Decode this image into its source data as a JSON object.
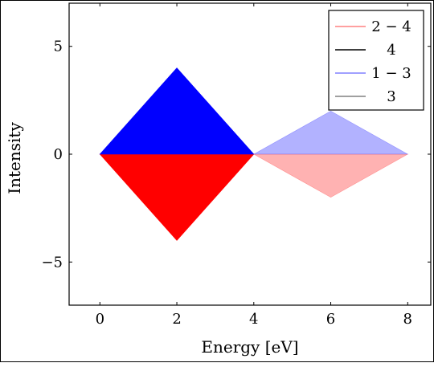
{
  "chart_data": {
    "type": "area",
    "title": "",
    "xlabel": "Energy [eV]",
    "ylabel": "Intensity",
    "xlim": [
      -0.8,
      8.6
    ],
    "ylim": [
      -7,
      7
    ],
    "xticks": [
      0,
      2,
      4,
      6,
      8
    ],
    "yticks": [
      -5,
      0,
      5
    ],
    "grid": false,
    "legend_position": "top-right",
    "series": [
      {
        "name": "2 − 4",
        "legend_label": "2 − 4",
        "color": "#ff0000",
        "legend_color": "#ff8080",
        "opacity": 1,
        "values": [
          [
            0,
            0
          ],
          [
            2,
            -4
          ],
          [
            4,
            0
          ]
        ]
      },
      {
        "name": "4",
        "legend_label": "4",
        "color": "#0000ff",
        "legend_color": "#000000",
        "opacity": 1,
        "values": [
          [
            0,
            0
          ],
          [
            2,
            4
          ],
          [
            4,
            0
          ]
        ]
      },
      {
        "name": "1 − 3",
        "legend_label": "1 − 3",
        "color": "#ff0000",
        "legend_color": "#8080ff",
        "opacity": 0.3,
        "values": [
          [
            4,
            0
          ],
          [
            6,
            -2
          ],
          [
            8,
            0
          ]
        ]
      },
      {
        "name": "3",
        "legend_label": "3",
        "color": "#0000ff",
        "legend_color": "#808080",
        "opacity": 0.3,
        "values": [
          [
            4,
            0
          ],
          [
            6,
            2
          ],
          [
            8,
            0
          ]
        ]
      }
    ]
  }
}
